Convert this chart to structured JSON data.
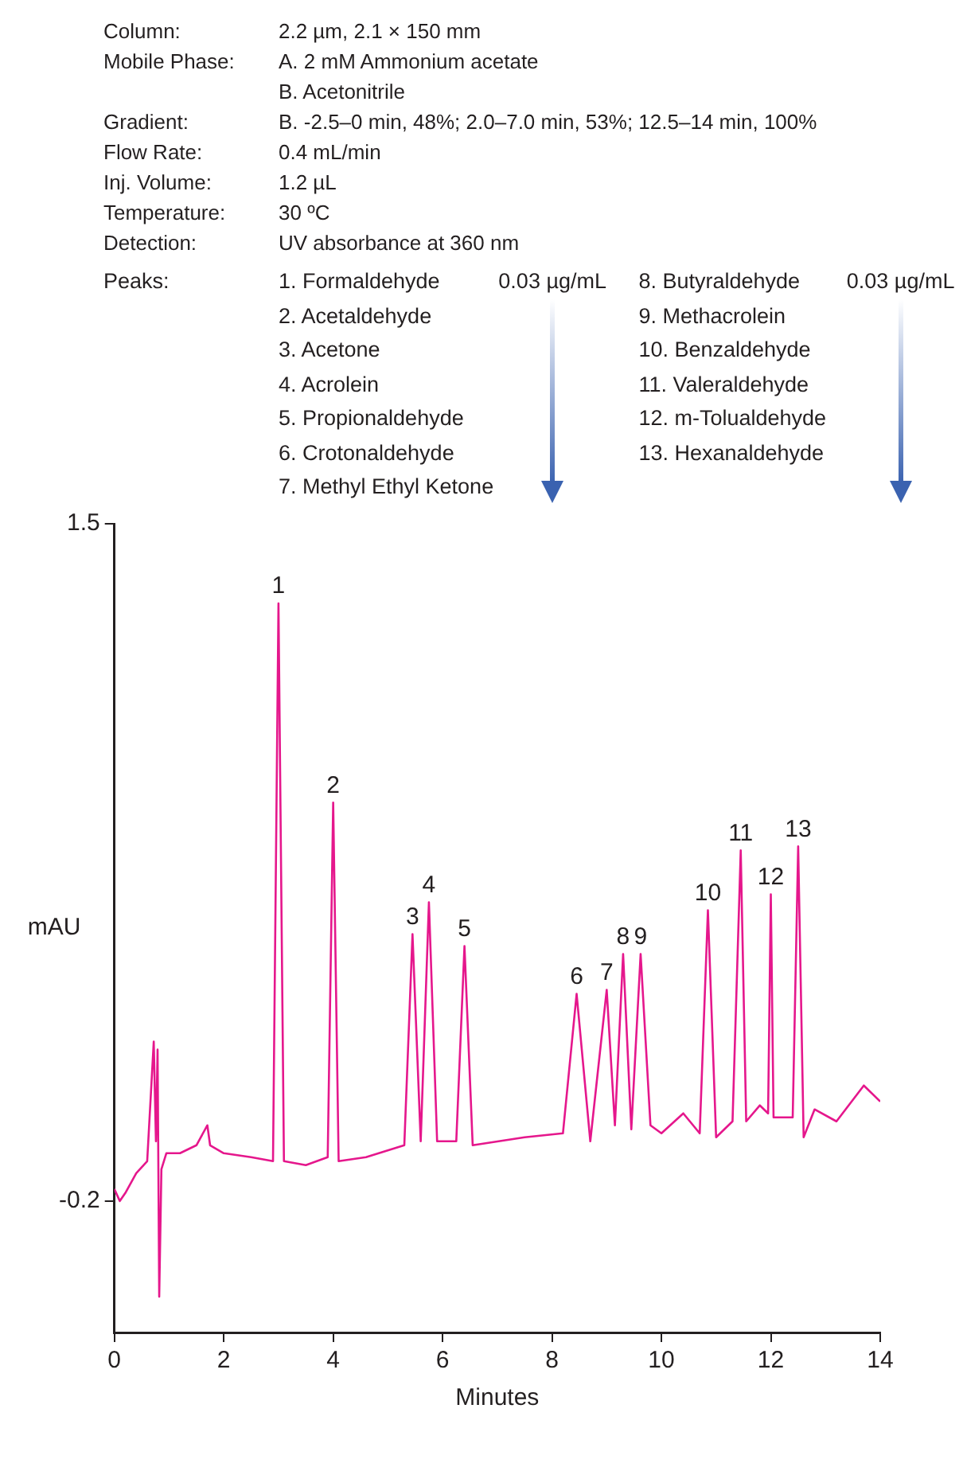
{
  "chart_data": {
    "type": "line",
    "xlabel": "Minutes",
    "ylabel": "mAU",
    "x": [
      0,
      0.1,
      0.2,
      0.4,
      0.6,
      0.72,
      0.76,
      0.79,
      0.82,
      0.86,
      0.95,
      1.2,
      1.5,
      1.7,
      1.75,
      2.0,
      2.5,
      2.9,
      3.0,
      3.1,
      3.5,
      3.9,
      4.0,
      4.1,
      4.6,
      5.3,
      5.45,
      5.6,
      5.75,
      5.9,
      6.25,
      6.4,
      6.55,
      7.5,
      8.2,
      8.45,
      8.7,
      9.0,
      9.15,
      9.3,
      9.45,
      9.62,
      9.8,
      10.0,
      10.4,
      10.7,
      10.85,
      11.0,
      11.3,
      11.45,
      11.55,
      11.8,
      11.95,
      12.0,
      12.05,
      12.4,
      12.5,
      12.6,
      12.8,
      13.2,
      13.7,
      14.0
    ],
    "values": [
      -0.17,
      -0.2,
      -0.18,
      -0.13,
      -0.1,
      0.2,
      -0.05,
      0.18,
      -0.44,
      -0.12,
      -0.08,
      -0.08,
      -0.06,
      -0.01,
      -0.06,
      -0.08,
      -0.09,
      -0.1,
      1.3,
      -0.1,
      -0.11,
      -0.09,
      0.8,
      -0.1,
      -0.09,
      -0.06,
      0.47,
      -0.05,
      0.55,
      -0.05,
      -0.05,
      0.44,
      -0.06,
      -0.04,
      -0.03,
      0.32,
      -0.05,
      0.33,
      -0.01,
      0.42,
      -0.02,
      0.42,
      -0.01,
      -0.03,
      0.02,
      -0.03,
      0.53,
      -0.04,
      0.0,
      0.68,
      0.0,
      0.04,
      0.02,
      0.57,
      0.01,
      0.01,
      0.69,
      -0.04,
      0.03,
      0.0,
      0.09,
      0.05
    ],
    "color": "#e5178c",
    "marker": "none",
    "line_style": "solid",
    "xlim": [
      0,
      14
    ],
    "xticks": [
      0,
      2,
      4,
      6,
      8,
      10,
      12,
      14
    ],
    "ylim": [
      -0.53,
      1.5
    ],
    "yticks": [
      1.5,
      -0.2
    ],
    "annotations": [
      "Column: 2.2 µm, 2.1 × 150 mm",
      "Mobile Phase: A. 2 mM Ammonium acetate",
      "B. Acetonitrile",
      "Gradient: B. -2.5–0 min, 48%; 2.0–7.0 min, 53%; 12.5–14 min, 100%",
      "Flow  Rate: 0.4 mL/min",
      "Inj. Volume: 1.2 µL",
      "Temperature: 30 ºC",
      "Detection: UV absorbance at 360 nm",
      "Peaks:",
      "1. Formaldehyde",
      "2. Acetaldehyde",
      "3. Acetone",
      "4. Acrolein",
      "5. Propionaldehyde",
      "6. Crotonaldehyde",
      "7. Methyl Ethyl Ketone",
      "0.03 µg/mL",
      "8. Butyraldehyde",
      "9. Methacrolein",
      "10. Benzaldehyde",
      "11. Valeraldehyde",
      "12. m-Tolualdehyde",
      "13. Hexanaldehyde",
      "0.03 µg/mL",
      {
        "text": "1",
        "x": 3.0,
        "y": 1.3
      },
      {
        "text": "2",
        "x": 4.0,
        "y": 0.8
      },
      {
        "text": "3",
        "x": 5.45,
        "y": 0.47
      },
      {
        "text": "4",
        "x": 5.75,
        "y": 0.55
      },
      {
        "text": "5",
        "x": 6.4,
        "y": 0.44
      },
      {
        "text": "6",
        "x": 8.45,
        "y": 0.32
      },
      {
        "text": "7",
        "x": 9.0,
        "y": 0.33
      },
      {
        "text": "8",
        "x": 9.3,
        "y": 0.42
      },
      {
        "text": "9",
        "x": 9.62,
        "y": 0.42
      },
      {
        "text": "10",
        "x": 10.85,
        "y": 0.53
      },
      {
        "text": "11",
        "x": 11.45,
        "y": 0.68
      },
      {
        "text": "12",
        "x": 12.0,
        "y": 0.57
      },
      {
        "text": "13",
        "x": 12.5,
        "y": 0.69
      }
    ]
  }
}
